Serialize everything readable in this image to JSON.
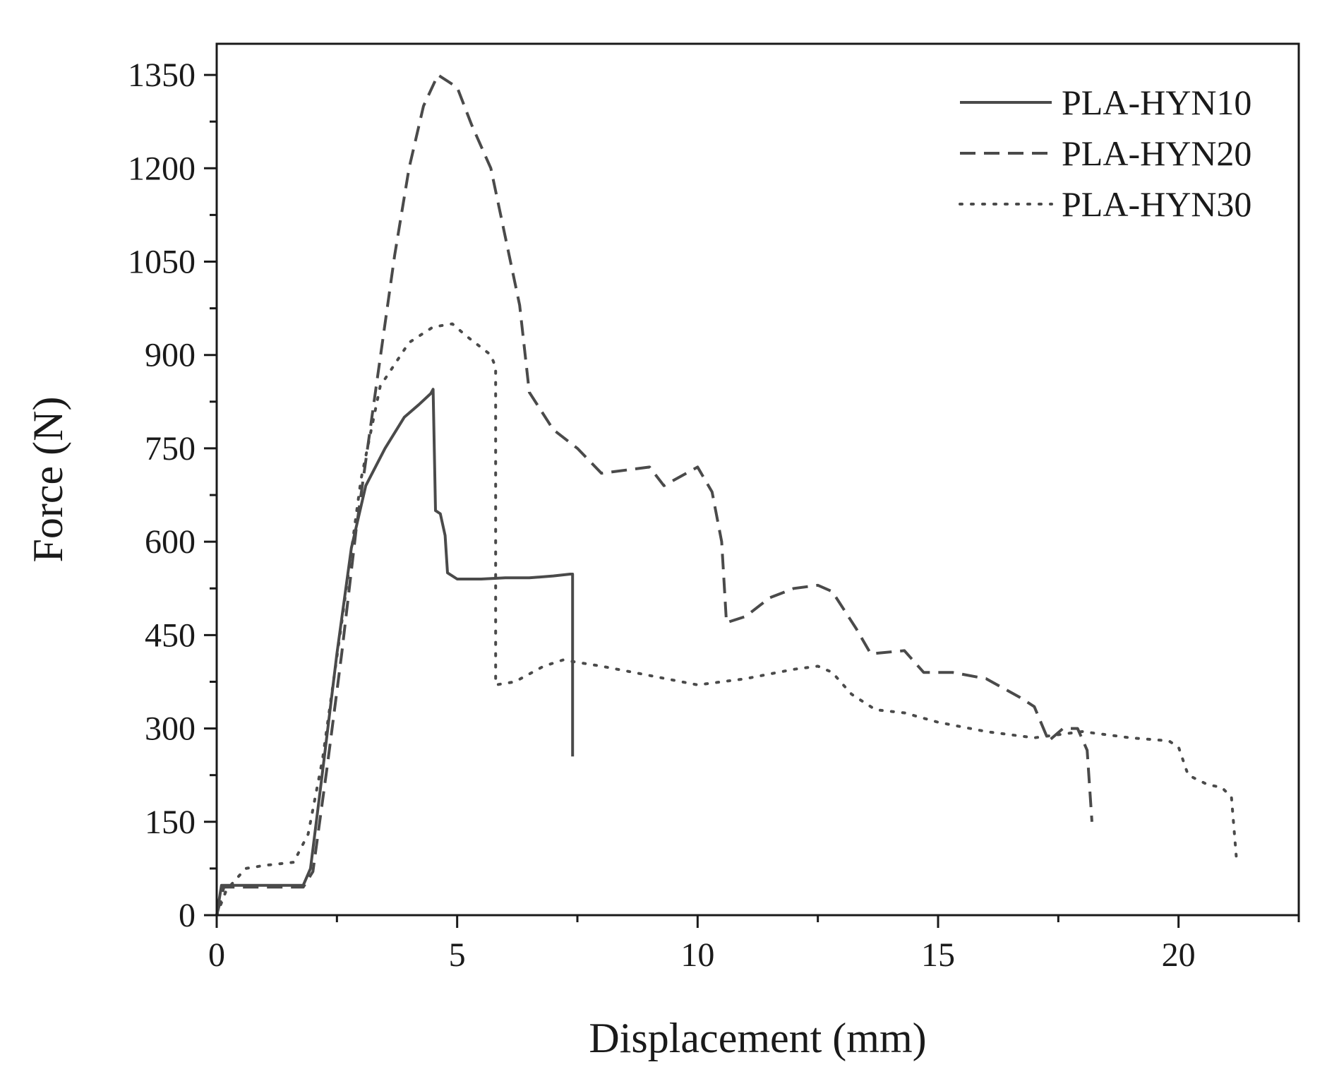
{
  "chart_data": {
    "type": "line",
    "title": "",
    "xlabel": "Displacement (mm)",
    "ylabel": "Force (N)",
    "xlim": [
      0,
      22.5
    ],
    "ylim": [
      0,
      1400
    ],
    "x_ticks": [
      0,
      5,
      10,
      15,
      20
    ],
    "y_ticks": [
      0,
      150,
      300,
      450,
      600,
      750,
      900,
      1050,
      1200,
      1350
    ],
    "grid": false,
    "legend_position": "top-right",
    "line_color": "#4a4a4a",
    "series": [
      {
        "name": "PLA-HYN10",
        "style": "solid",
        "points": [
          [
            0,
            0
          ],
          [
            0.1,
            48
          ],
          [
            0.5,
            48
          ],
          [
            1,
            48
          ],
          [
            1.8,
            48
          ],
          [
            1.95,
            75
          ],
          [
            2.2,
            230
          ],
          [
            2.5,
            420
          ],
          [
            2.8,
            590
          ],
          [
            3.1,
            690
          ],
          [
            3.5,
            750
          ],
          [
            3.9,
            800
          ],
          [
            4.2,
            820
          ],
          [
            4.45,
            838
          ],
          [
            4.5,
            845
          ],
          [
            4.55,
            650
          ],
          [
            4.65,
            645
          ],
          [
            4.75,
            610
          ],
          [
            4.8,
            550
          ],
          [
            5,
            540
          ],
          [
            5.5,
            540
          ],
          [
            6,
            542
          ],
          [
            6.5,
            542
          ],
          [
            7,
            545
          ],
          [
            7.35,
            548
          ],
          [
            7.4,
            548
          ],
          [
            7.4,
            255
          ]
        ]
      },
      {
        "name": "PLA-HYN20",
        "style": "dashed",
        "points": [
          [
            0,
            0
          ],
          [
            0.15,
            45
          ],
          [
            0.5,
            45
          ],
          [
            1.8,
            45
          ],
          [
            2.0,
            70
          ],
          [
            2.3,
            240
          ],
          [
            2.6,
            420
          ],
          [
            2.9,
            620
          ],
          [
            3.3,
            840
          ],
          [
            3.7,
            1060
          ],
          [
            4.0,
            1200
          ],
          [
            4.3,
            1300
          ],
          [
            4.6,
            1350
          ],
          [
            5.0,
            1330
          ],
          [
            5.3,
            1270
          ],
          [
            5.7,
            1200
          ],
          [
            6.0,
            1090
          ],
          [
            6.3,
            980
          ],
          [
            6.5,
            840
          ],
          [
            7.0,
            780
          ],
          [
            7.5,
            750
          ],
          [
            8.0,
            710
          ],
          [
            9.0,
            720
          ],
          [
            9.3,
            690
          ],
          [
            10.0,
            720
          ],
          [
            10.3,
            680
          ],
          [
            10.5,
            600
          ],
          [
            10.6,
            470
          ],
          [
            11.0,
            480
          ],
          [
            11.5,
            510
          ],
          [
            12.0,
            525
          ],
          [
            12.5,
            530
          ],
          [
            12.8,
            520
          ],
          [
            13.3,
            460
          ],
          [
            13.6,
            420
          ],
          [
            14.3,
            425
          ],
          [
            14.7,
            390
          ],
          [
            15.3,
            390
          ],
          [
            16.0,
            380
          ],
          [
            16.7,
            350
          ],
          [
            17.0,
            335
          ],
          [
            17.3,
            280
          ],
          [
            17.6,
            300
          ],
          [
            17.9,
            300
          ],
          [
            18.1,
            265
          ],
          [
            18.2,
            150
          ]
        ]
      },
      {
        "name": "PLA-HYN30",
        "style": "dotted",
        "points": [
          [
            0,
            0
          ],
          [
            0.2,
            40
          ],
          [
            0.6,
            75
          ],
          [
            1.0,
            80
          ],
          [
            1.6,
            85
          ],
          [
            1.9,
            130
          ],
          [
            2.2,
            250
          ],
          [
            2.6,
            470
          ],
          [
            3.0,
            700
          ],
          [
            3.4,
            850
          ],
          [
            4.0,
            920
          ],
          [
            4.5,
            945
          ],
          [
            4.9,
            950
          ],
          [
            5.2,
            930
          ],
          [
            5.7,
            900
          ],
          [
            5.8,
            880
          ],
          [
            5.8,
            370
          ],
          [
            6.2,
            375
          ],
          [
            6.8,
            400
          ],
          [
            7.2,
            410
          ],
          [
            8.0,
            400
          ],
          [
            9.0,
            385
          ],
          [
            10.0,
            370
          ],
          [
            11.0,
            380
          ],
          [
            12.0,
            395
          ],
          [
            12.5,
            400
          ],
          [
            12.8,
            390
          ],
          [
            13.2,
            355
          ],
          [
            13.7,
            330
          ],
          [
            14.3,
            325
          ],
          [
            15.0,
            310
          ],
          [
            16.0,
            295
          ],
          [
            17.0,
            285
          ],
          [
            17.5,
            290
          ],
          [
            18.0,
            295
          ],
          [
            19.0,
            285
          ],
          [
            19.8,
            280
          ],
          [
            20.0,
            270
          ],
          [
            20.2,
            225
          ],
          [
            20.6,
            210
          ],
          [
            20.9,
            205
          ],
          [
            21.1,
            190
          ],
          [
            21.2,
            95
          ]
        ]
      }
    ]
  }
}
